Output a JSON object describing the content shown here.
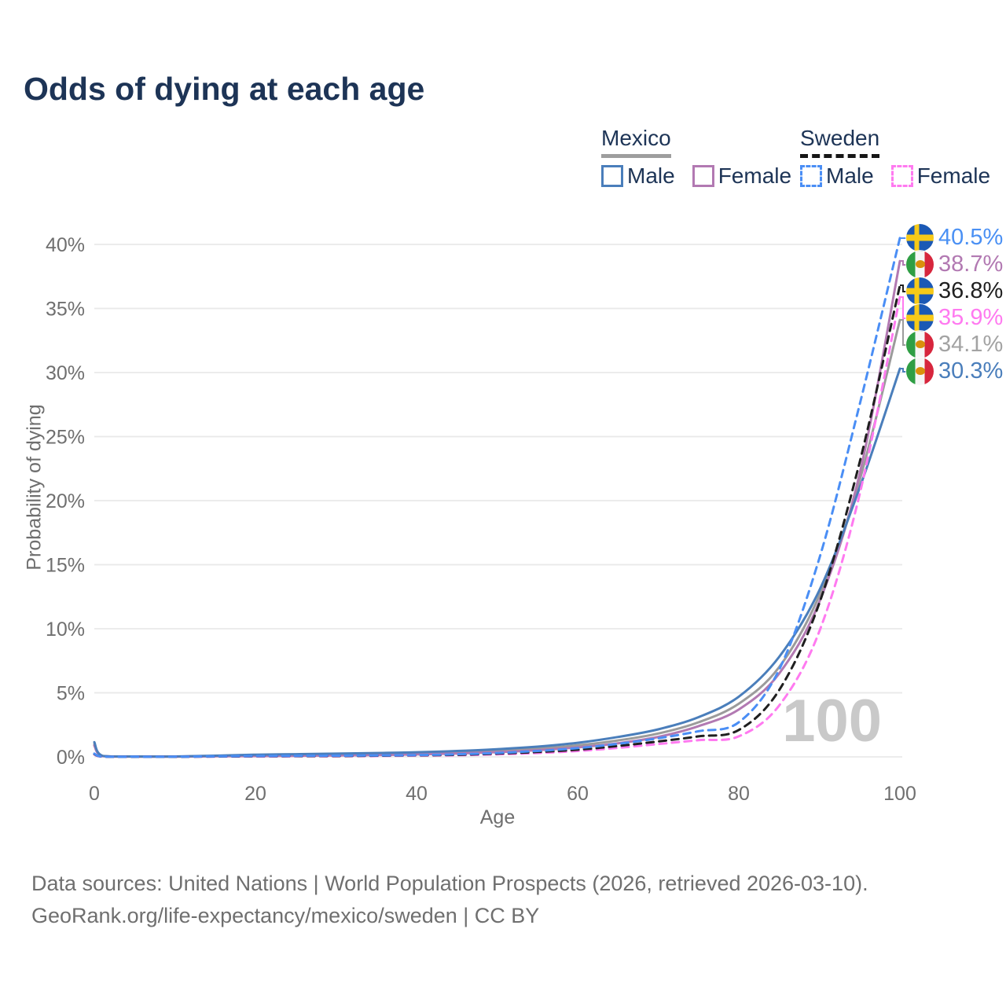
{
  "title": "Odds of dying at each age",
  "watermark": "100",
  "legend": {
    "groups": [
      {
        "country": "Mexico",
        "line_style": "solid",
        "underline_color": "#9e9e9e",
        "items": [
          {
            "label": "Male",
            "color": "#4a7ebb"
          },
          {
            "label": "Female",
            "color": "#b279b2"
          }
        ]
      },
      {
        "country": "Sweden",
        "line_style": "dashed",
        "underline_color": "#161616",
        "items": [
          {
            "label": "Male",
            "color": "#4a8ef5"
          },
          {
            "label": "Female",
            "color": "#ff7af0"
          }
        ]
      }
    ]
  },
  "axes": {
    "x": {
      "label": "Age",
      "ticks": [
        {
          "label": "0",
          "value": 0
        },
        {
          "label": "20",
          "value": 20
        },
        {
          "label": "40",
          "value": 40
        },
        {
          "label": "60",
          "value": 60
        },
        {
          "label": "80",
          "value": 80
        },
        {
          "label": "100",
          "value": 100
        }
      ]
    },
    "y": {
      "label": "Probability of dying",
      "ticks": [
        {
          "label": "0%",
          "value": 0
        },
        {
          "label": "5%",
          "value": 5
        },
        {
          "label": "10%",
          "value": 10
        },
        {
          "label": "15%",
          "value": 15
        },
        {
          "label": "20%",
          "value": 20
        },
        {
          "label": "25%",
          "value": 25
        },
        {
          "label": "30%",
          "value": 30
        },
        {
          "label": "35%",
          "value": 35
        },
        {
          "label": "40%",
          "value": 40
        }
      ]
    }
  },
  "end_labels": [
    {
      "series": "sweden-male",
      "flag": "sweden",
      "value": "40.5%",
      "color": "#4a90f4"
    },
    {
      "series": "mexico-female",
      "flag": "mexico",
      "value": "38.7%",
      "color": "#b279b2"
    },
    {
      "series": "sweden-total",
      "flag": "sweden",
      "value": "36.8%",
      "color": "#1f1f1f"
    },
    {
      "series": "sweden-female",
      "flag": "sweden",
      "value": "35.9%",
      "color": "#ff7af0"
    },
    {
      "series": "mexico-total",
      "flag": "mexico",
      "value": "34.1%",
      "color": "#a3a3a3"
    },
    {
      "series": "mexico-male",
      "flag": "mexico",
      "value": "30.3%",
      "color": "#4a7ebb"
    }
  ],
  "footer": {
    "line1": "Data sources: United Nations | World Population Prospects (2026, retrieved 2026-03-10).",
    "line2": "GeoRank.org/life-expectancy/mexico/sweden | CC BY"
  },
  "chart_data": {
    "type": "line",
    "title": "Odds of dying at each age",
    "xlabel": "Age",
    "ylabel": "Probability of dying",
    "xlim": [
      0,
      100
    ],
    "ylim": [
      0,
      40
    ],
    "y_unit": "percent",
    "grid": "horizontal-only",
    "legend_position": "top-right",
    "ages": [
      0,
      1,
      5,
      10,
      15,
      20,
      25,
      30,
      35,
      40,
      45,
      50,
      55,
      60,
      65,
      70,
      75,
      80,
      85,
      90,
      95,
      100
    ],
    "series": [
      {
        "id": "mexico-male",
        "label": "Mexico Male",
        "color": "#4a7ebb",
        "dash": false,
        "final_label": "30.3%",
        "values": [
          1.15,
          0.08,
          0.03,
          0.03,
          0.09,
          0.17,
          0.21,
          0.25,
          0.3,
          0.36,
          0.46,
          0.6,
          0.8,
          1.1,
          1.55,
          2.15,
          3.1,
          4.7,
          7.8,
          13.0,
          21.0,
          30.3
        ]
      },
      {
        "id": "mexico-total",
        "label": "Mexico (both sexes)",
        "color": "#9b9b9b",
        "dash": false,
        "final_label": "34.1%",
        "values": [
          1.0,
          0.07,
          0.025,
          0.025,
          0.06,
          0.12,
          0.15,
          0.18,
          0.22,
          0.27,
          0.35,
          0.47,
          0.64,
          0.9,
          1.28,
          1.82,
          2.7,
          4.15,
          7.0,
          12.6,
          21.6,
          34.1
        ]
      },
      {
        "id": "mexico-female",
        "label": "Mexico Female",
        "color": "#b279b2",
        "dash": false,
        "final_label": "38.7%",
        "values": [
          0.88,
          0.06,
          0.02,
          0.02,
          0.04,
          0.06,
          0.08,
          0.11,
          0.14,
          0.19,
          0.26,
          0.37,
          0.52,
          0.74,
          1.06,
          1.56,
          2.4,
          3.7,
          6.5,
          12.1,
          22.1,
          38.7
        ]
      },
      {
        "id": "sweden-male",
        "label": "Sweden Male",
        "color": "#4a8ef5",
        "dash": true,
        "final_label": "40.5%",
        "values": [
          0.25,
          0.02,
          0.01,
          0.01,
          0.04,
          0.07,
          0.08,
          0.09,
          0.11,
          0.14,
          0.2,
          0.3,
          0.46,
          0.68,
          1.02,
          1.45,
          2.0,
          2.7,
          6.8,
          15.5,
          27.5,
          40.5
        ]
      },
      {
        "id": "sweden-total",
        "label": "Sweden (both sexes)",
        "color": "#1f1f1f",
        "dash": true,
        "final_label": "36.8%",
        "values": [
          0.22,
          0.018,
          0.009,
          0.009,
          0.03,
          0.05,
          0.06,
          0.07,
          0.09,
          0.12,
          0.16,
          0.25,
          0.38,
          0.56,
          0.85,
          1.2,
          1.6,
          2.1,
          5.2,
          12.0,
          23.0,
          36.8
        ]
      },
      {
        "id": "sweden-female",
        "label": "Sweden Female",
        "color": "#ff7af0",
        "dash": true,
        "final_label": "35.9%",
        "values": [
          0.19,
          0.015,
          0.008,
          0.008,
          0.02,
          0.03,
          0.04,
          0.05,
          0.07,
          0.1,
          0.13,
          0.2,
          0.3,
          0.46,
          0.7,
          1.0,
          1.3,
          1.6,
          4.0,
          9.8,
          20.5,
          35.9
        ]
      }
    ]
  }
}
